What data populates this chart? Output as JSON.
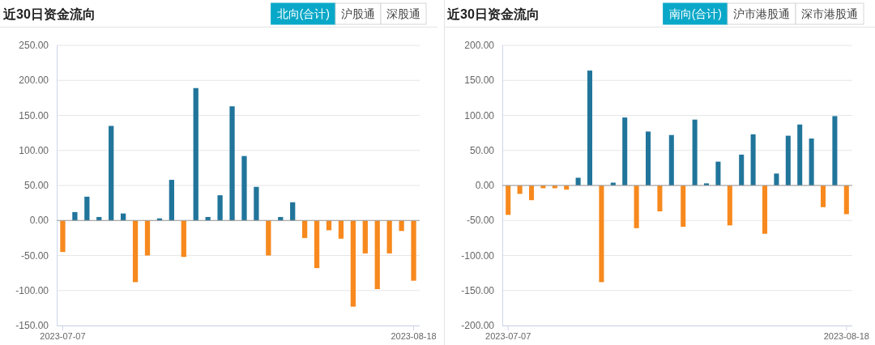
{
  "chart_data": [
    {
      "type": "bar",
      "title": "近30日资金流向",
      "subtitle": "北向(合计)",
      "annotations": [
        "沪股通",
        "深股通"
      ],
      "categories": [
        "2023-07-07",
        null,
        null,
        null,
        null,
        null,
        null,
        null,
        null,
        null,
        null,
        null,
        null,
        null,
        null,
        null,
        null,
        null,
        null,
        null,
        null,
        null,
        null,
        null,
        null,
        null,
        null,
        null,
        null,
        "2023-08-18"
      ],
      "values": [
        -45,
        12,
        34,
        5,
        135,
        10,
        -88,
        -50,
        3,
        58,
        -52,
        189,
        5,
        36,
        163,
        92,
        48,
        -50,
        5,
        26,
        -25,
        -68,
        -14,
        -26,
        -123,
        -47,
        -98,
        -47,
        -15,
        -86
      ],
      "colors": [
        "#f7891e",
        "#21759b",
        "#21759b",
        "#21759b",
        "#21759b",
        "#21759b",
        "#f7891e",
        "#f7891e",
        "#21759b",
        "#21759b",
        "#f7891e",
        "#21759b",
        "#21759b",
        "#21759b",
        "#21759b",
        "#21759b",
        "#21759b",
        "#f7891e",
        "#21759b",
        "#21759b",
        "#f7891e",
        "#f7891e",
        "#f7891e",
        "#f7891e",
        "#f7891e",
        "#f7891e",
        "#f7891e",
        "#f7891e",
        "#f7891e",
        "#f7891e"
      ],
      "ylim": [
        -150,
        250
      ],
      "yticks": [
        {
          "value": -150,
          "label": "-150.00"
        },
        {
          "value": -100,
          "label": "-100.00"
        },
        {
          "value": -50,
          "label": "-50.00"
        },
        {
          "value": 0,
          "label": "0.00"
        },
        {
          "value": 50,
          "label": "50.00"
        },
        {
          "value": 100,
          "label": "100.00"
        },
        {
          "value": 150,
          "label": "150.00"
        },
        {
          "value": 200,
          "label": "200.00"
        },
        {
          "value": 250,
          "label": "250.00"
        }
      ],
      "ref_lines": [
        {
          "axis": "y",
          "value": 0,
          "color": "#999999"
        }
      ],
      "grid": "y"
    },
    {
      "type": "bar",
      "title": "近30日资金流向",
      "subtitle": "南向(合计)",
      "annotations": [
        "沪市港股通",
        "深市港股通"
      ],
      "categories": [
        "2023-07-07",
        null,
        null,
        null,
        null,
        null,
        null,
        null,
        null,
        null,
        null,
        null,
        null,
        null,
        null,
        null,
        null,
        null,
        null,
        null,
        null,
        null,
        null,
        null,
        null,
        null,
        null,
        null,
        null,
        "2023-08-18"
      ],
      "values": [
        -42,
        -12,
        -21,
        -4,
        -4,
        -6,
        11,
        164,
        -138,
        4,
        97,
        -61,
        77,
        -37,
        72,
        -59,
        94,
        3,
        34,
        -57,
        44,
        73,
        -69,
        17,
        71,
        87,
        67,
        -31,
        99,
        -41
      ],
      "colors": [
        "#f7891e",
        "#f7891e",
        "#f7891e",
        "#f7891e",
        "#f7891e",
        "#f7891e",
        "#21759b",
        "#21759b",
        "#f7891e",
        "#21759b",
        "#21759b",
        "#f7891e",
        "#21759b",
        "#f7891e",
        "#21759b",
        "#f7891e",
        "#21759b",
        "#21759b",
        "#21759b",
        "#f7891e",
        "#21759b",
        "#21759b",
        "#f7891e",
        "#21759b",
        "#21759b",
        "#21759b",
        "#21759b",
        "#f7891e",
        "#21759b",
        "#f7891e"
      ],
      "ylim": [
        -200,
        200
      ],
      "yticks": [
        {
          "value": -200,
          "label": "-200.00"
        },
        {
          "value": -150,
          "label": "-150.00"
        },
        {
          "value": -100,
          "label": "-100.00"
        },
        {
          "value": -50,
          "label": "-50.00"
        },
        {
          "value": 0,
          "label": "0.00"
        },
        {
          "value": 50,
          "label": "50.00"
        },
        {
          "value": 100,
          "label": "100.00"
        },
        {
          "value": 150,
          "label": "150.00"
        },
        {
          "value": 200,
          "label": "200.00"
        }
      ],
      "ref_lines": [
        {
          "axis": "y",
          "value": 0,
          "color": "#999999"
        }
      ],
      "grid": "y"
    }
  ]
}
